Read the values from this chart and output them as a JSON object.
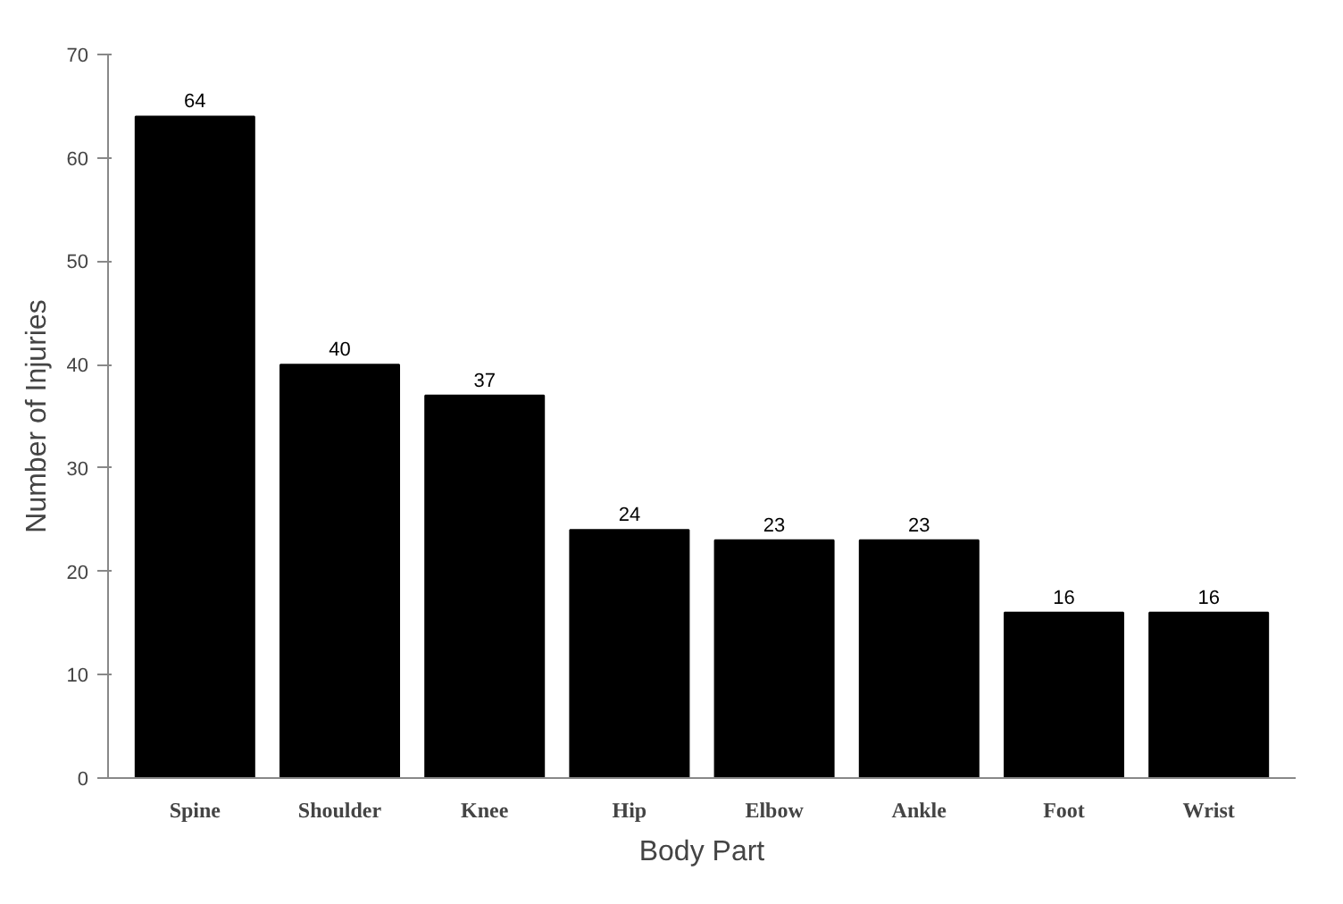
{
  "chart_data": {
    "type": "bar",
    "xlabel": "Body Part",
    "ylabel": "Number of Injuries",
    "categories": [
      "Spine",
      "Shoulder",
      "Knee",
      "Hip",
      "Elbow",
      "Ankle",
      "Foot",
      "Wrist"
    ],
    "values": [
      64,
      40,
      37,
      24,
      23,
      23,
      16,
      16
    ],
    "color": "#000000",
    "ylim": [
      0,
      70
    ],
    "yticks": [
      0,
      10,
      20,
      30,
      40,
      50,
      60,
      70
    ],
    "grid": false,
    "data_labels": true
  }
}
